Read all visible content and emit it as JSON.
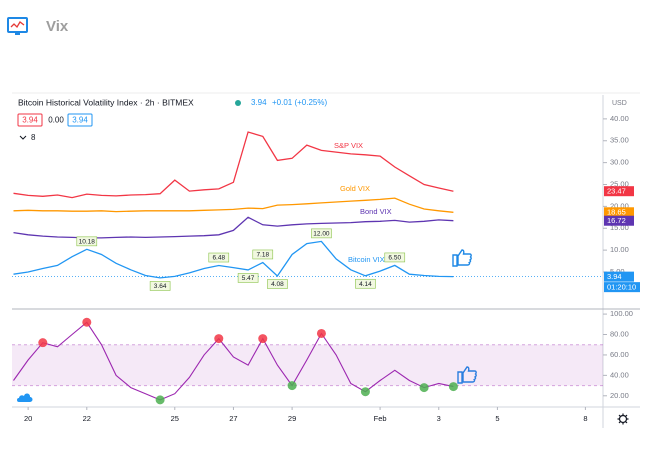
{
  "header": {
    "title": "Vix"
  },
  "chart_data": [
    {
      "type": "line",
      "title": "Bitcoin Historical Volatility Index · 2h · BITMEX",
      "last": "3.94",
      "change": "+0.01 (+0.25%)",
      "ohlc": [
        "3.94",
        "0.00",
        "3.94"
      ],
      "study_count": 8,
      "currency": "USD",
      "countdown": "01:20:10",
      "x": [
        19.5,
        20,
        20.5,
        21,
        21.5,
        22,
        22.5,
        23,
        23.5,
        24,
        24.5,
        25,
        25.5,
        26,
        26.5,
        27,
        27.5,
        28,
        28.5,
        29,
        29.5,
        30,
        30.5,
        31,
        31.5,
        32,
        32.5,
        33,
        33.5,
        34,
        34.5
      ],
      "xlim": [
        19.45,
        39.6
      ],
      "ylim": [
        -3,
        45
      ],
      "yticks": [
        {
          "value": 5,
          "label": "5.00"
        },
        {
          "value": 10,
          "label": "10.00"
        },
        {
          "value": 15,
          "label": "15.00"
        },
        {
          "value": 20,
          "label": "20.00"
        },
        {
          "value": 25,
          "label": "25.00"
        },
        {
          "value": 30,
          "label": "30.00"
        },
        {
          "value": 35,
          "label": "35.00"
        },
        {
          "value": 40,
          "label": "40.00"
        }
      ],
      "series": [
        {
          "name": "S&P VIX",
          "color": "#f23645",
          "values": [
            23.0,
            22.5,
            22.3,
            22.6,
            22.0,
            22.8,
            22.5,
            22.4,
            22.6,
            22.7,
            22.9,
            26.0,
            23.5,
            23.8,
            24.0,
            25.5,
            37.0,
            36.0,
            30.5,
            31.0,
            34.0,
            32.8,
            32.4,
            32.0,
            31.8,
            31.5,
            29.0,
            27.0,
            25.0,
            24.2,
            23.47
          ]
        },
        {
          "name": "Gold VIX",
          "color": "#ff9800",
          "values": [
            19.0,
            19.1,
            19.0,
            19.0,
            18.9,
            18.9,
            19.0,
            18.8,
            18.9,
            19.0,
            19.0,
            19.0,
            19.0,
            19.1,
            19.2,
            19.3,
            19.6,
            19.5,
            20.3,
            20.4,
            20.6,
            20.8,
            21.0,
            21.2,
            21.4,
            21.6,
            21.9,
            20.5,
            19.4,
            19.0,
            18.65
          ]
        },
        {
          "name": "Bond VIX",
          "color": "#5e35b1",
          "values": [
            14.0,
            13.5,
            13.2,
            13.0,
            12.9,
            12.8,
            12.8,
            12.9,
            13.0,
            12.9,
            13.0,
            13.1,
            13.2,
            13.3,
            13.5,
            14.5,
            17.5,
            15.8,
            15.5,
            15.8,
            16.0,
            16.1,
            16.2,
            16.3,
            16.5,
            16.6,
            16.8,
            16.4,
            16.6,
            16.9,
            16.72
          ]
        },
        {
          "name": "Bitcoin VIX",
          "color": "#2196f3",
          "values": [
            4.5,
            5.0,
            5.8,
            6.5,
            8.5,
            10.18,
            9.0,
            7.0,
            5.5,
            4.2,
            3.64,
            4.0,
            4.8,
            5.8,
            6.48,
            6.0,
            5.47,
            7.18,
            4.08,
            9.0,
            11.5,
            12.0,
            8.0,
            5.5,
            4.14,
            5.2,
            6.5,
            4.5,
            4.2,
            4.0,
            3.94
          ],
          "value_labels": [
            null,
            null,
            null,
            null,
            null,
            "10.18",
            null,
            null,
            null,
            null,
            "3.64",
            null,
            null,
            null,
            "6.48",
            null,
            "5.47",
            "7.18",
            "4.08",
            null,
            null,
            "12.00",
            null,
            null,
            "4.14",
            null,
            "6.50",
            null,
            null,
            null,
            null
          ]
        }
      ]
    },
    {
      "type": "oscillator",
      "x": [
        19.5,
        20,
        20.5,
        21,
        21.5,
        22,
        22.5,
        23,
        23.5,
        24,
        24.5,
        25,
        25.5,
        26,
        26.5,
        27,
        27.5,
        28,
        28.5,
        29,
        29.5,
        30,
        30.5,
        31,
        31.5,
        32,
        32.5,
        33,
        33.5,
        34,
        34.5
      ],
      "xlim": [
        19.45,
        39.6
      ],
      "xticks": [
        20,
        22,
        25,
        27,
        29,
        {
          "value": 32,
          "label": "Feb"
        },
        {
          "value": 34,
          "label": "3"
        },
        {
          "value": 36,
          "label": "5"
        },
        {
          "value": 39,
          "label": "8"
        }
      ],
      "ylim": [
        10,
        104
      ],
      "yticks": [
        {
          "value": 20,
          "label": "20.00"
        },
        {
          "value": 40,
          "label": "40.00"
        },
        {
          "value": 60,
          "label": "60.00"
        },
        {
          "value": 80,
          "label": "80.00"
        },
        {
          "value": 100,
          "label": "100.00"
        }
      ],
      "band": [
        30,
        70
      ],
      "band_color": "#9c27b0",
      "high_color": "#f23645",
      "low_color": "#4caf50",
      "series": [
        {
          "color": "#9c27b0",
          "values": [
            35,
            55,
            72,
            68,
            80,
            92,
            70,
            40,
            28,
            22,
            16,
            22,
            38,
            60,
            76,
            58,
            50,
            76,
            50,
            30,
            55,
            81,
            60,
            32,
            24,
            35,
            45,
            35,
            28,
            32,
            29
          ]
        }
      ]
    }
  ]
}
